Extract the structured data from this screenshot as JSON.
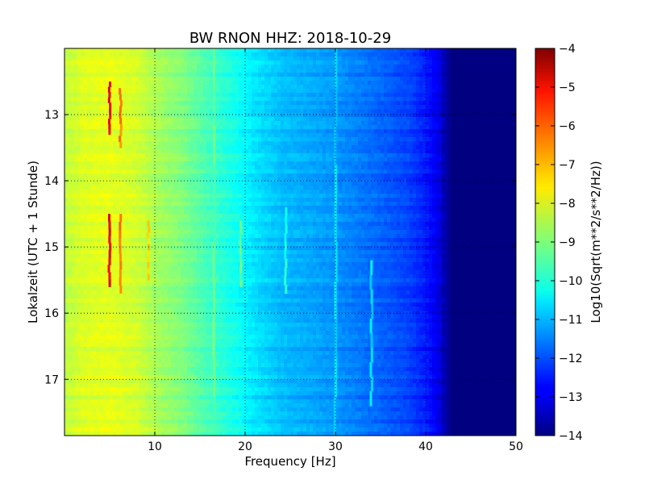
{
  "chart_data": {
    "type": "heatmap",
    "title": "BW RNON HHZ: 2018-10-29",
    "xlabel": "Frequency [Hz]",
    "ylabel": "Lokalzeit (UTC + 1 Stunde)",
    "xlim": [
      0,
      50
    ],
    "ylim": [
      12.0,
      17.85
    ],
    "y_inverted": true,
    "grid": true,
    "x_ticks": [
      10,
      20,
      30,
      40,
      50
    ],
    "x_tick_labels": [
      "10",
      "20",
      "30",
      "40",
      "50"
    ],
    "y_ticks": [
      13,
      14,
      15,
      16,
      17
    ],
    "y_tick_labels": [
      "13",
      "14",
      "15",
      "16",
      "17"
    ],
    "colormap": "jet",
    "colorbar": {
      "label": "Log10(Sqrt(m**2/s**2/Hz))",
      "range": [
        -14,
        -4
      ],
      "ticks": [
        -4,
        -5,
        -6,
        -7,
        -8,
        -9,
        -10,
        -11,
        -12,
        -13,
        -14
      ],
      "tick_labels": [
        "−4",
        "−5",
        "−6",
        "−7",
        "−8",
        "−9",
        "−10",
        "−11",
        "−12",
        "−13",
        "−14"
      ]
    },
    "spectrum_profile": {
      "frequency_hz": [
        0,
        2,
        5,
        8,
        10,
        13,
        16,
        19,
        21,
        24,
        27,
        30,
        33,
        36,
        38,
        40,
        41.5,
        42,
        43,
        50
      ],
      "level": [
        -8.4,
        -8.1,
        -8.0,
        -8.2,
        -8.6,
        -9.0,
        -9.6,
        -10.1,
        -10.5,
        -10.9,
        -11.1,
        -11.3,
        -11.6,
        -11.9,
        -12.1,
        -12.5,
        -13.0,
        -13.5,
        -14.0,
        -14.0
      ]
    },
    "features": [
      {
        "freq_hz": 5.0,
        "from_time": 12.5,
        "to_time": 13.3,
        "level": -5.2
      },
      {
        "freq_hz": 5.0,
        "from_time": 14.5,
        "to_time": 15.6,
        "level": -5.0
      },
      {
        "freq_hz": 6.2,
        "from_time": 12.6,
        "to_time": 13.5,
        "level": -6.5
      },
      {
        "freq_hz": 6.2,
        "from_time": 14.5,
        "to_time": 15.7,
        "level": -6.5
      },
      {
        "freq_hz": 9.3,
        "from_time": 14.6,
        "to_time": 15.5,
        "level": -7.3
      },
      {
        "freq_hz": 16.6,
        "from_time": 12.0,
        "to_time": 17.85,
        "level": -9.3
      },
      {
        "freq_hz": 19.5,
        "from_time": 14.6,
        "to_time": 15.6,
        "level": -9.2
      },
      {
        "freq_hz": 24.5,
        "from_time": 14.4,
        "to_time": 15.7,
        "level": -10.0
      },
      {
        "freq_hz": 30.0,
        "from_time": 12.0,
        "to_time": 17.85,
        "level": -10.6
      },
      {
        "freq_hz": 34.0,
        "from_time": 15.2,
        "to_time": 17.4,
        "level": -10.6
      }
    ]
  }
}
